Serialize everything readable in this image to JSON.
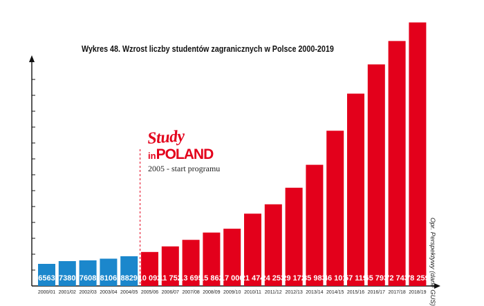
{
  "chart_data": {
    "type": "bar",
    "title": "Wykres 48. Wzrost liczby studentów zagranicznych w Polsce 2000-2019",
    "categories": [
      "2000/01",
      "2001/02",
      "2002/03",
      "2003/04",
      "2004/05",
      "2005/06",
      "2006/07",
      "2007/08",
      "2008/09",
      "2009/10",
      "2010/11",
      "2011/12",
      "2012/13",
      "2013/14",
      "2014/15",
      "2015/16",
      "2016/17",
      "2017/18",
      "2018/19"
    ],
    "values": [
      6563,
      7380,
      7608,
      8106,
      8829,
      10092,
      11752,
      13695,
      15862,
      17000,
      21474,
      24253,
      29172,
      35983,
      46101,
      57119,
      65793,
      72743,
      78259
    ],
    "value_labels": [
      "6563",
      "7380",
      "7608",
      "8106",
      "8829",
      "10 092",
      "11 752",
      "13 695",
      "15 862",
      "17 000",
      "21 474",
      "24 253",
      "29 172",
      "35 983",
      "46 101",
      "57 119",
      "65 793",
      "72 743",
      "78 259"
    ],
    "ylim": [
      0,
      80000
    ],
    "grid": false,
    "colors": {
      "before": "#1b87cc",
      "after": "#e3001b"
    },
    "before_count": 5,
    "source": "Opr. Perspektywy (dane GUS)"
  },
  "logo": {
    "line1": "Study",
    "line2_prefix": "in",
    "line2_word": "POLAND",
    "caption": "2005 - start programu"
  }
}
